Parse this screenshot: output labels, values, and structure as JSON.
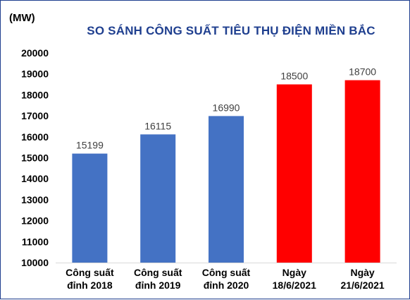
{
  "unit_label": "(MW)",
  "chart_data": {
    "type": "bar",
    "title": "SO SÁNH CÔNG SUẤT TIÊU THỤ ĐIỆN MIỀN BẮC",
    "ylabel": "(MW)",
    "xlabel": "",
    "ylim": [
      10000,
      20000
    ],
    "yticks": [
      10000,
      11000,
      12000,
      13000,
      14000,
      15000,
      16000,
      17000,
      18000,
      19000,
      20000
    ],
    "categories": [
      [
        "Công suất",
        "đỉnh 2018"
      ],
      [
        "Công suất",
        "đỉnh 2019"
      ],
      [
        "Công suất",
        "đỉnh 2020"
      ],
      [
        "Ngày",
        "18/6/2021"
      ],
      [
        "Ngày",
        "21/6/2021"
      ]
    ],
    "values": [
      15199,
      16115,
      16990,
      18500,
      18700
    ],
    "bar_colors": [
      "#4472c4",
      "#4472c4",
      "#4472c4",
      "#ff0000",
      "#ff0000"
    ],
    "data_labels": true,
    "grid": false,
    "legend": "none"
  }
}
